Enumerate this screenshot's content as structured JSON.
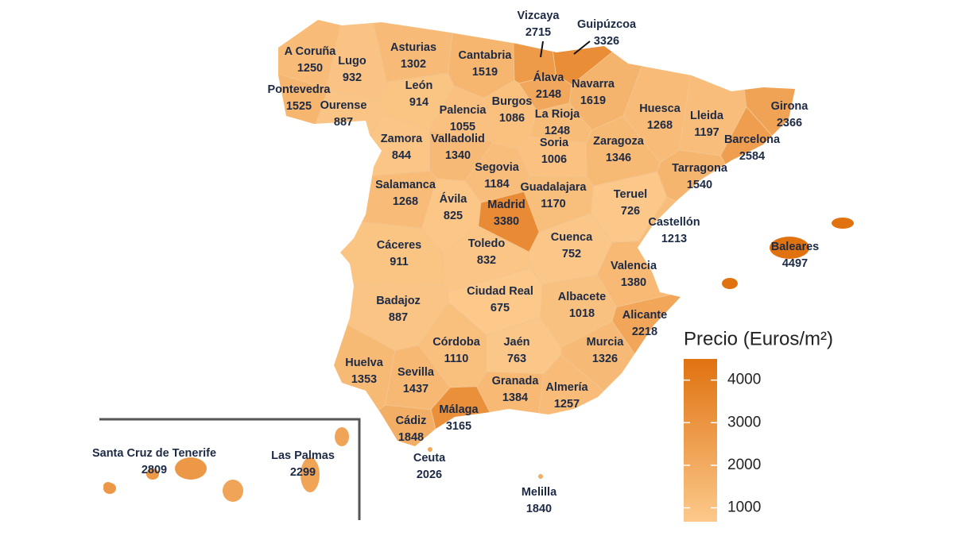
{
  "chart_data": {
    "type": "choropleth",
    "categories": [
      "A Coruña",
      "Lugo",
      "Asturias",
      "Cantabria",
      "Vizcaya",
      "Guipúzcoa",
      "Pontevedra",
      "Ourense",
      "León",
      "Álava",
      "Navarra",
      "Palencia",
      "Burgos",
      "La Rioja",
      "Huesca",
      "Lleida",
      "Girona",
      "Zamora",
      "Valladolid",
      "Soria",
      "Zaragoza",
      "Barcelona",
      "Segovia",
      "Tarragona",
      "Salamanca",
      "Ávila",
      "Guadalajara",
      "Madrid",
      "Teruel",
      "Castellón",
      "Baleares",
      "Cáceres",
      "Toledo",
      "Cuenca",
      "Valencia",
      "Ciudad Real",
      "Badajoz",
      "Albacete",
      "Alicante",
      "Córdoba",
      "Jaén",
      "Murcia",
      "Huelva",
      "Sevilla",
      "Granada",
      "Almería",
      "Málaga",
      "Cádiz",
      "Ceuta",
      "Melilla",
      "Santa Cruz de Tenerife",
      "Las Palmas"
    ],
    "values": [
      1250,
      932,
      1302,
      1519,
      2715,
      3326,
      1525,
      887,
      914,
      2148,
      1619,
      1055,
      1086,
      1248,
      1268,
      1197,
      2366,
      844,
      1340,
      1006,
      1346,
      2584,
      1184,
      1540,
      1268,
      825,
      1170,
      3380,
      726,
      1213,
      4497,
      911,
      832,
      752,
      1380,
      675,
      887,
      1018,
      2218,
      1110,
      763,
      1326,
      1353,
      1437,
      1384,
      1257,
      3165,
      1848,
      2026,
      1840,
      2809,
      2299
    ],
    "legend_title": "Precio (Euros/m²)",
    "clim": [
      675,
      4497
    ],
    "cticks": [
      1000,
      2000,
      3000,
      4000
    ],
    "colors": [
      "#fcc98b",
      "#e07210"
    ]
  }
}
